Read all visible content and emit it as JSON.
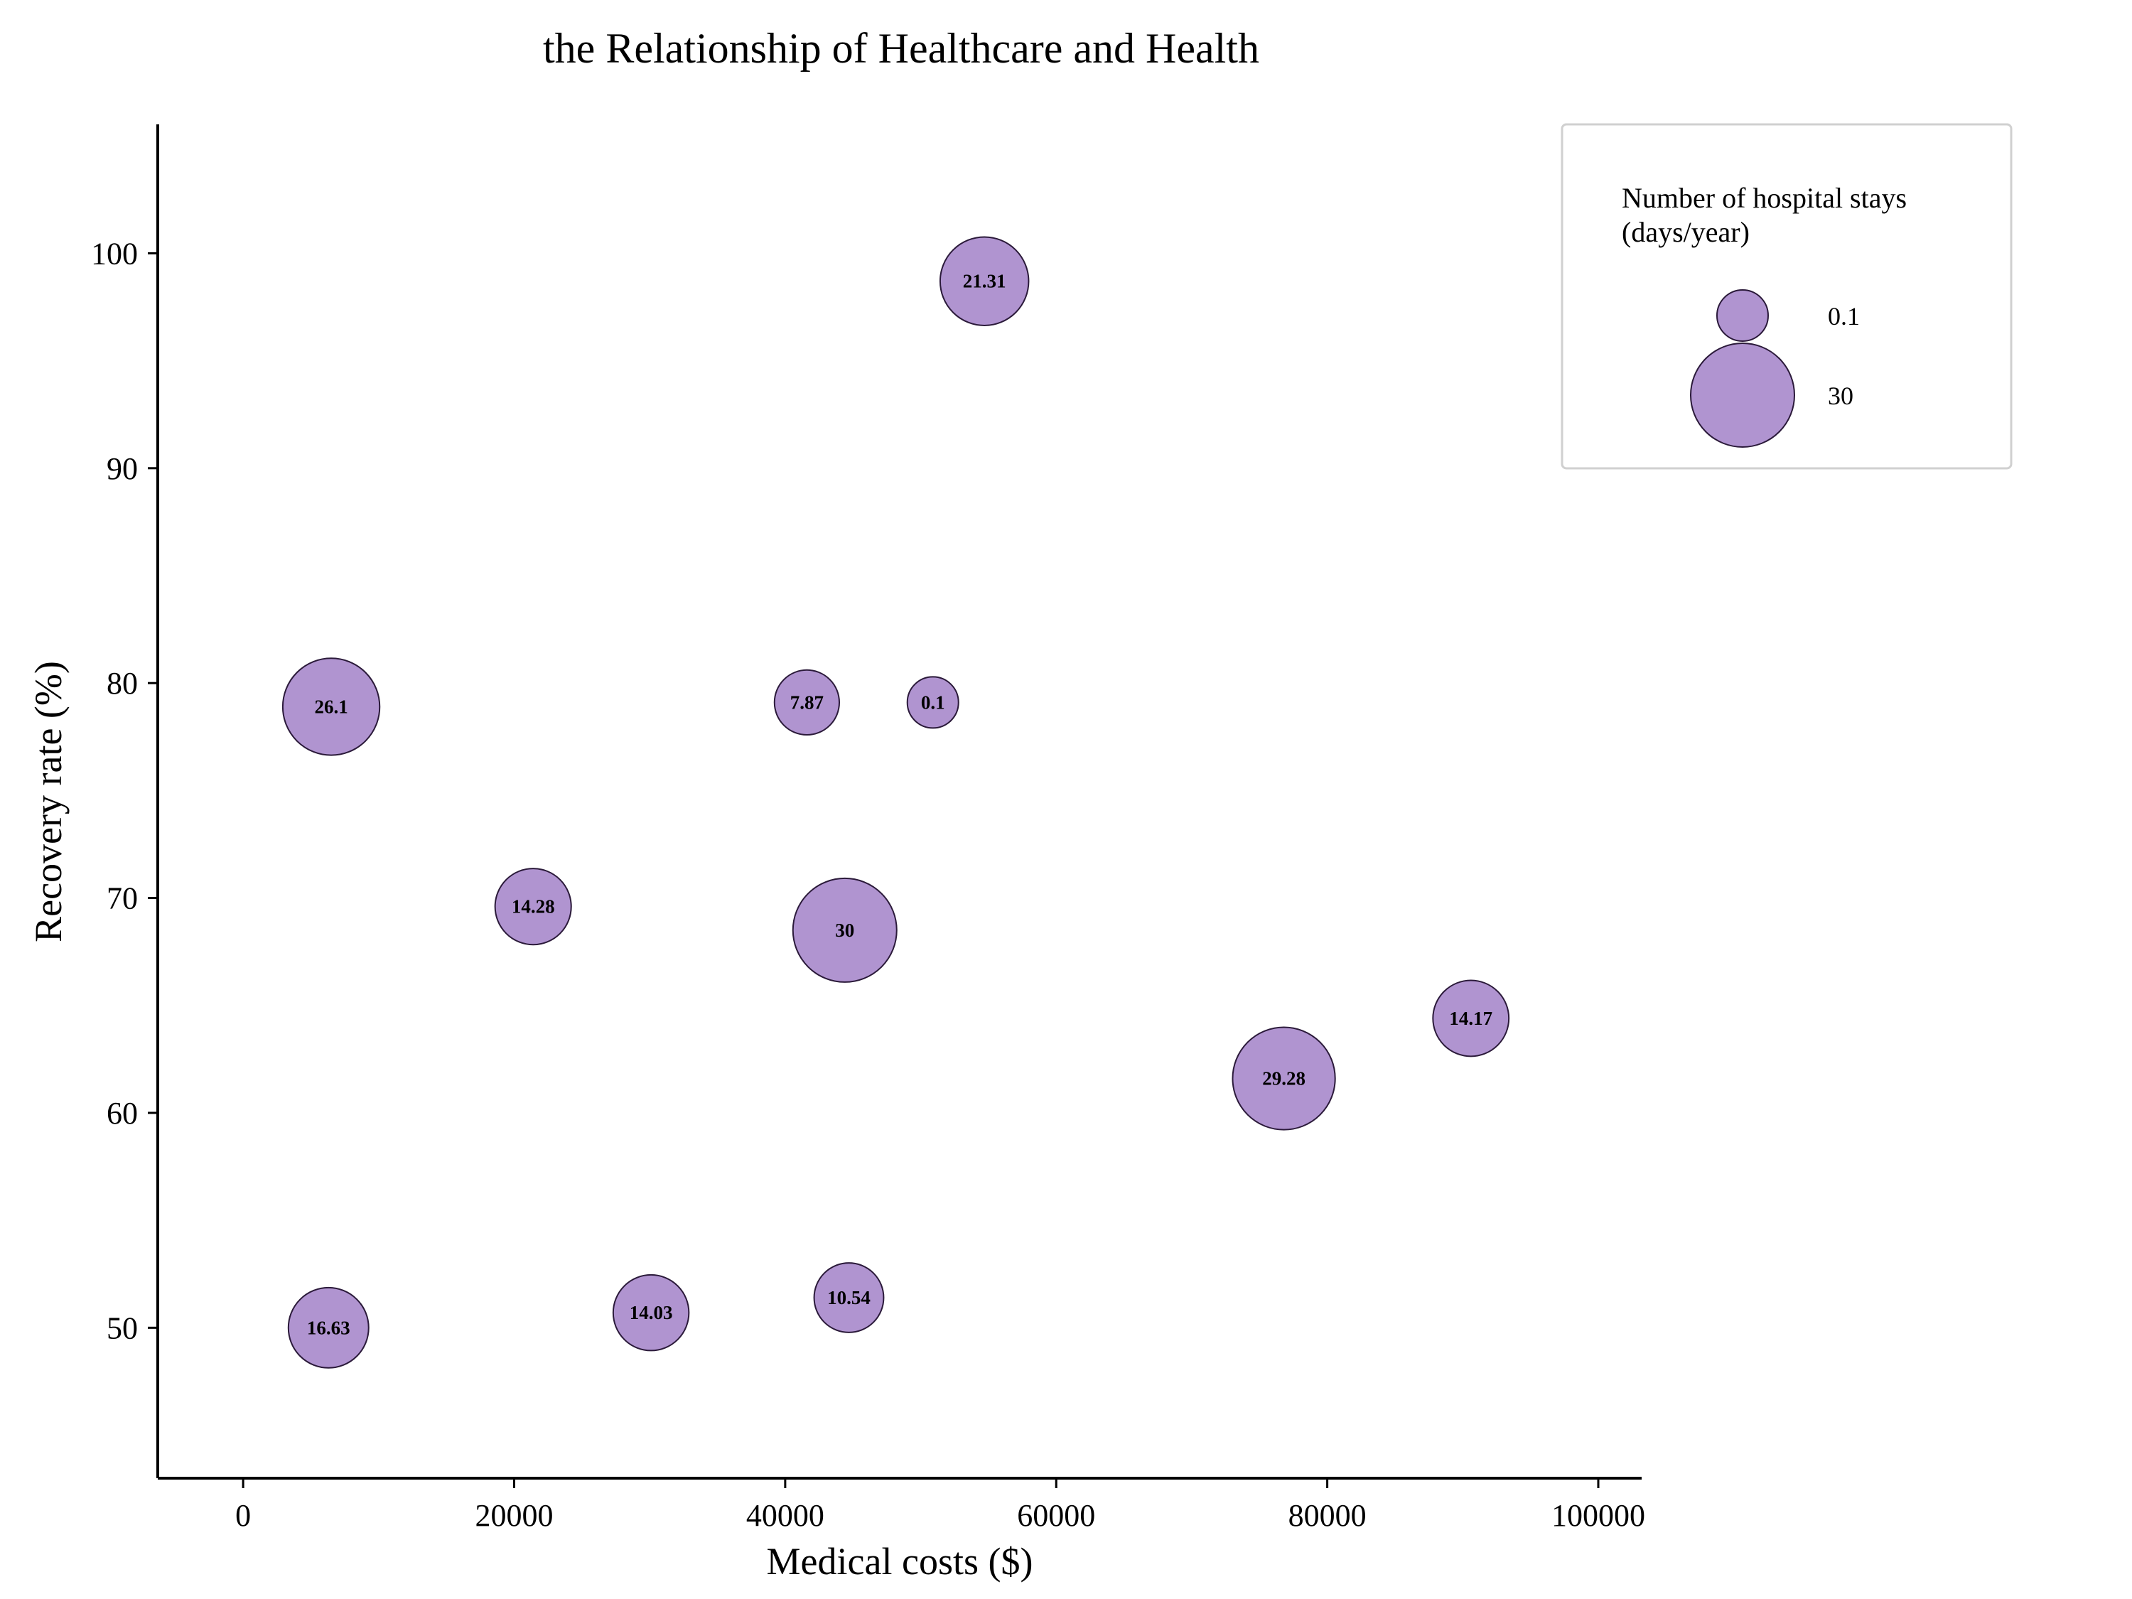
{
  "chart_data": {
    "type": "scatter",
    "title": "the Relationship of Healthcare and Health",
    "xlabel": "Medical costs ($)",
    "ylabel": "Recovery rate (%)",
    "xlim": [
      -6300,
      103200
    ],
    "ylim": [
      43,
      106
    ],
    "xticks": [
      0,
      20000,
      40000,
      60000,
      80000,
      100000
    ],
    "yticks": [
      50,
      60,
      70,
      80,
      90,
      100
    ],
    "grid": false,
    "bubble_color": "#b094d0",
    "bubble_edge_color": "#2b1a3a",
    "points": [
      {
        "x": 54700,
        "y": 98.7,
        "size": 21.31,
        "label": "21.31"
      },
      {
        "x": 6500,
        "y": 78.9,
        "size": 26.1,
        "label": "26.1"
      },
      {
        "x": 41600,
        "y": 79.1,
        "size": 7.87,
        "label": "7.87"
      },
      {
        "x": 50900,
        "y": 79.1,
        "size": 0.1,
        "label": "0.1"
      },
      {
        "x": 21400,
        "y": 69.6,
        "size": 14.28,
        "label": "14.28"
      },
      {
        "x": 44400,
        "y": 68.5,
        "size": 30,
        "label": "30"
      },
      {
        "x": 90600,
        "y": 64.4,
        "size": 14.17,
        "label": "14.17"
      },
      {
        "x": 76800,
        "y": 61.6,
        "size": 29.28,
        "label": "29.28"
      },
      {
        "x": 6300,
        "y": 50.0,
        "size": 16.63,
        "label": "16.63"
      },
      {
        "x": 30100,
        "y": 50.7,
        "size": 14.03,
        "label": "14.03"
      },
      {
        "x": 44700,
        "y": 51.4,
        "size": 10.54,
        "label": "10.54"
      }
    ],
    "legend": {
      "title_line1": "Number of hospital stays",
      "title_line2": "(days/year)",
      "placement": "top-right",
      "items": [
        {
          "size": 0.1,
          "label": "0.1"
        },
        {
          "size": 30,
          "label": "30"
        }
      ]
    }
  }
}
